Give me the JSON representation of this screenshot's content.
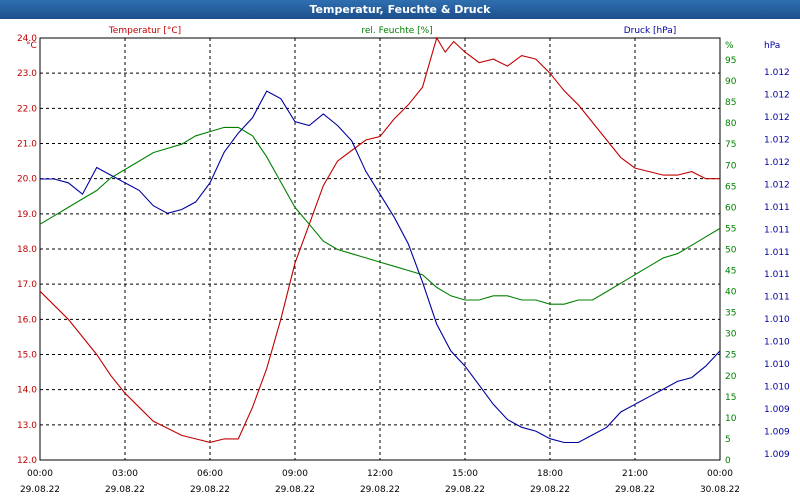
{
  "window_title": "Temperatur, Feuchte & Druck",
  "chart_data": {
    "type": "line",
    "title": "Temperatur, Feuchte & Druck",
    "x_ticks": [
      {
        "time": "00:00",
        "date": "29.08.22"
      },
      {
        "time": "03:00",
        "date": "29.08.22"
      },
      {
        "time": "06:00",
        "date": "29.08.22"
      },
      {
        "time": "09:00",
        "date": "29.08.22"
      },
      {
        "time": "12:00",
        "date": "29.08.22"
      },
      {
        "time": "15:00",
        "date": "29.08.22"
      },
      {
        "time": "18:00",
        "date": "29.08.22"
      },
      {
        "time": "21:00",
        "date": "29.08.22"
      },
      {
        "time": "00:00",
        "date": "30.08.22"
      }
    ],
    "x_range_hours": [
      0,
      24
    ],
    "grid": true,
    "axes": {
      "temperature": {
        "unit": "°C",
        "ylim": [
          12.0,
          24.0
        ],
        "ticks": [
          "12.0",
          "13.0",
          "14.0",
          "15.0",
          "16.0",
          "17.0",
          "18.0",
          "19.0",
          "20.0",
          "21.0",
          "22.0",
          "23.0",
          "24.0"
        ],
        "color": "#c00000"
      },
      "humidity": {
        "unit": "%",
        "ylim": [
          0,
          95
        ],
        "ticks": [
          "0",
          "5",
          "10",
          "15",
          "20",
          "25",
          "30",
          "35",
          "40",
          "45",
          "50",
          "55",
          "60",
          "65",
          "70",
          "75",
          "80",
          "85",
          "90",
          "95"
        ],
        "color": "#008000"
      },
      "pressure": {
        "unit": "hPa",
        "ticks": [
          "1.009",
          "1.009",
          "1.009",
          "1.010",
          "1.010",
          "1.010",
          "1.010",
          "1.011",
          "1.011",
          "1.011",
          "1.011",
          "1.011",
          "1.012",
          "1.012",
          "1.012",
          "1.012",
          "1.012",
          "1.012"
        ],
        "color": "#0000a0"
      }
    },
    "series": [
      {
        "name": "Temperatur [°C]",
        "axis": "temperature",
        "color": "#c00000",
        "x": [
          0,
          0.5,
          1,
          1.5,
          2,
          2.5,
          3,
          3.5,
          4,
          4.5,
          5,
          5.5,
          6,
          6.5,
          7,
          7.5,
          8,
          8.5,
          9,
          9.5,
          10,
          10.5,
          11,
          11.5,
          12,
          12.5,
          13,
          13.5,
          14,
          14.3,
          14.6,
          15,
          15.5,
          16,
          16.5,
          17,
          17.5,
          18,
          18.5,
          19,
          19.5,
          20,
          20.5,
          21,
          21.5,
          22,
          22.5,
          23,
          23.5,
          24
        ],
        "values": [
          16.8,
          16.4,
          16.0,
          15.5,
          15.0,
          14.4,
          13.9,
          13.5,
          13.1,
          12.9,
          12.7,
          12.6,
          12.5,
          12.6,
          12.6,
          13.5,
          14.6,
          16.0,
          17.6,
          18.7,
          19.8,
          20.5,
          20.8,
          21.1,
          21.2,
          21.7,
          22.1,
          22.6,
          24.0,
          23.6,
          23.9,
          23.6,
          23.3,
          23.4,
          23.2,
          23.5,
          23.4,
          23.0,
          22.5,
          22.1,
          21.6,
          21.1,
          20.6,
          20.3,
          20.2,
          20.1,
          20.1,
          20.2,
          20.0,
          20.0
        ]
      },
      {
        "name": "rel. Feuchte [%]",
        "axis": "humidity",
        "color": "#008000",
        "x": [
          0,
          0.5,
          1,
          1.5,
          2,
          2.5,
          3,
          3.5,
          4,
          4.5,
          5,
          5.5,
          6,
          6.5,
          7,
          7.5,
          8,
          8.5,
          9,
          9.5,
          10,
          10.5,
          11,
          11.5,
          12,
          12.5,
          13,
          13.5,
          14,
          14.5,
          15,
          15.5,
          16,
          16.5,
          17,
          17.5,
          18,
          18.5,
          19,
          19.5,
          20,
          20.5,
          21,
          21.5,
          22,
          22.5,
          23,
          23.5,
          24
        ],
        "values": [
          56,
          58,
          60,
          62,
          64,
          67,
          69,
          71,
          73,
          74,
          75,
          77,
          78,
          79,
          79,
          77,
          72,
          66,
          60,
          56,
          52,
          50,
          49,
          48,
          47,
          46,
          45,
          44,
          41,
          39,
          38,
          38,
          39,
          39,
          38,
          38,
          37,
          37,
          38,
          38,
          40,
          42,
          44,
          46,
          48,
          49,
          51,
          53,
          55
        ]
      },
      {
        "name": "Druck [hPa]",
        "axis": "pressure",
        "norm_range": [
          0,
          1
        ],
        "x": [
          0,
          0.5,
          1,
          1.5,
          2,
          2.5,
          3,
          3.5,
          4,
          4.5,
          5,
          5.5,
          6,
          6.5,
          7,
          7.5,
          8,
          8.5,
          9,
          9.5,
          10,
          10.5,
          11,
          11.5,
          12,
          12.5,
          13,
          13.5,
          14,
          14.5,
          15,
          15.5,
          16,
          16.5,
          17,
          17.5,
          18,
          18.5,
          19,
          19.5,
          20,
          20.5,
          21,
          21.5,
          22,
          22.5,
          23,
          23.5,
          24
        ],
        "values": [
          0.72,
          0.72,
          0.71,
          0.68,
          0.75,
          0.73,
          0.71,
          0.69,
          0.65,
          0.63,
          0.64,
          0.66,
          0.71,
          0.79,
          0.84,
          0.88,
          0.95,
          0.93,
          0.87,
          0.86,
          0.89,
          0.86,
          0.82,
          0.74,
          0.68,
          0.62,
          0.55,
          0.45,
          0.34,
          0.27,
          0.23,
          0.18,
          0.13,
          0.09,
          0.07,
          0.06,
          0.04,
          0.03,
          0.03,
          0.05,
          0.07,
          0.11,
          0.13,
          0.15,
          0.17,
          0.19,
          0.2,
          0.23,
          0.27
        ]
      }
    ]
  }
}
